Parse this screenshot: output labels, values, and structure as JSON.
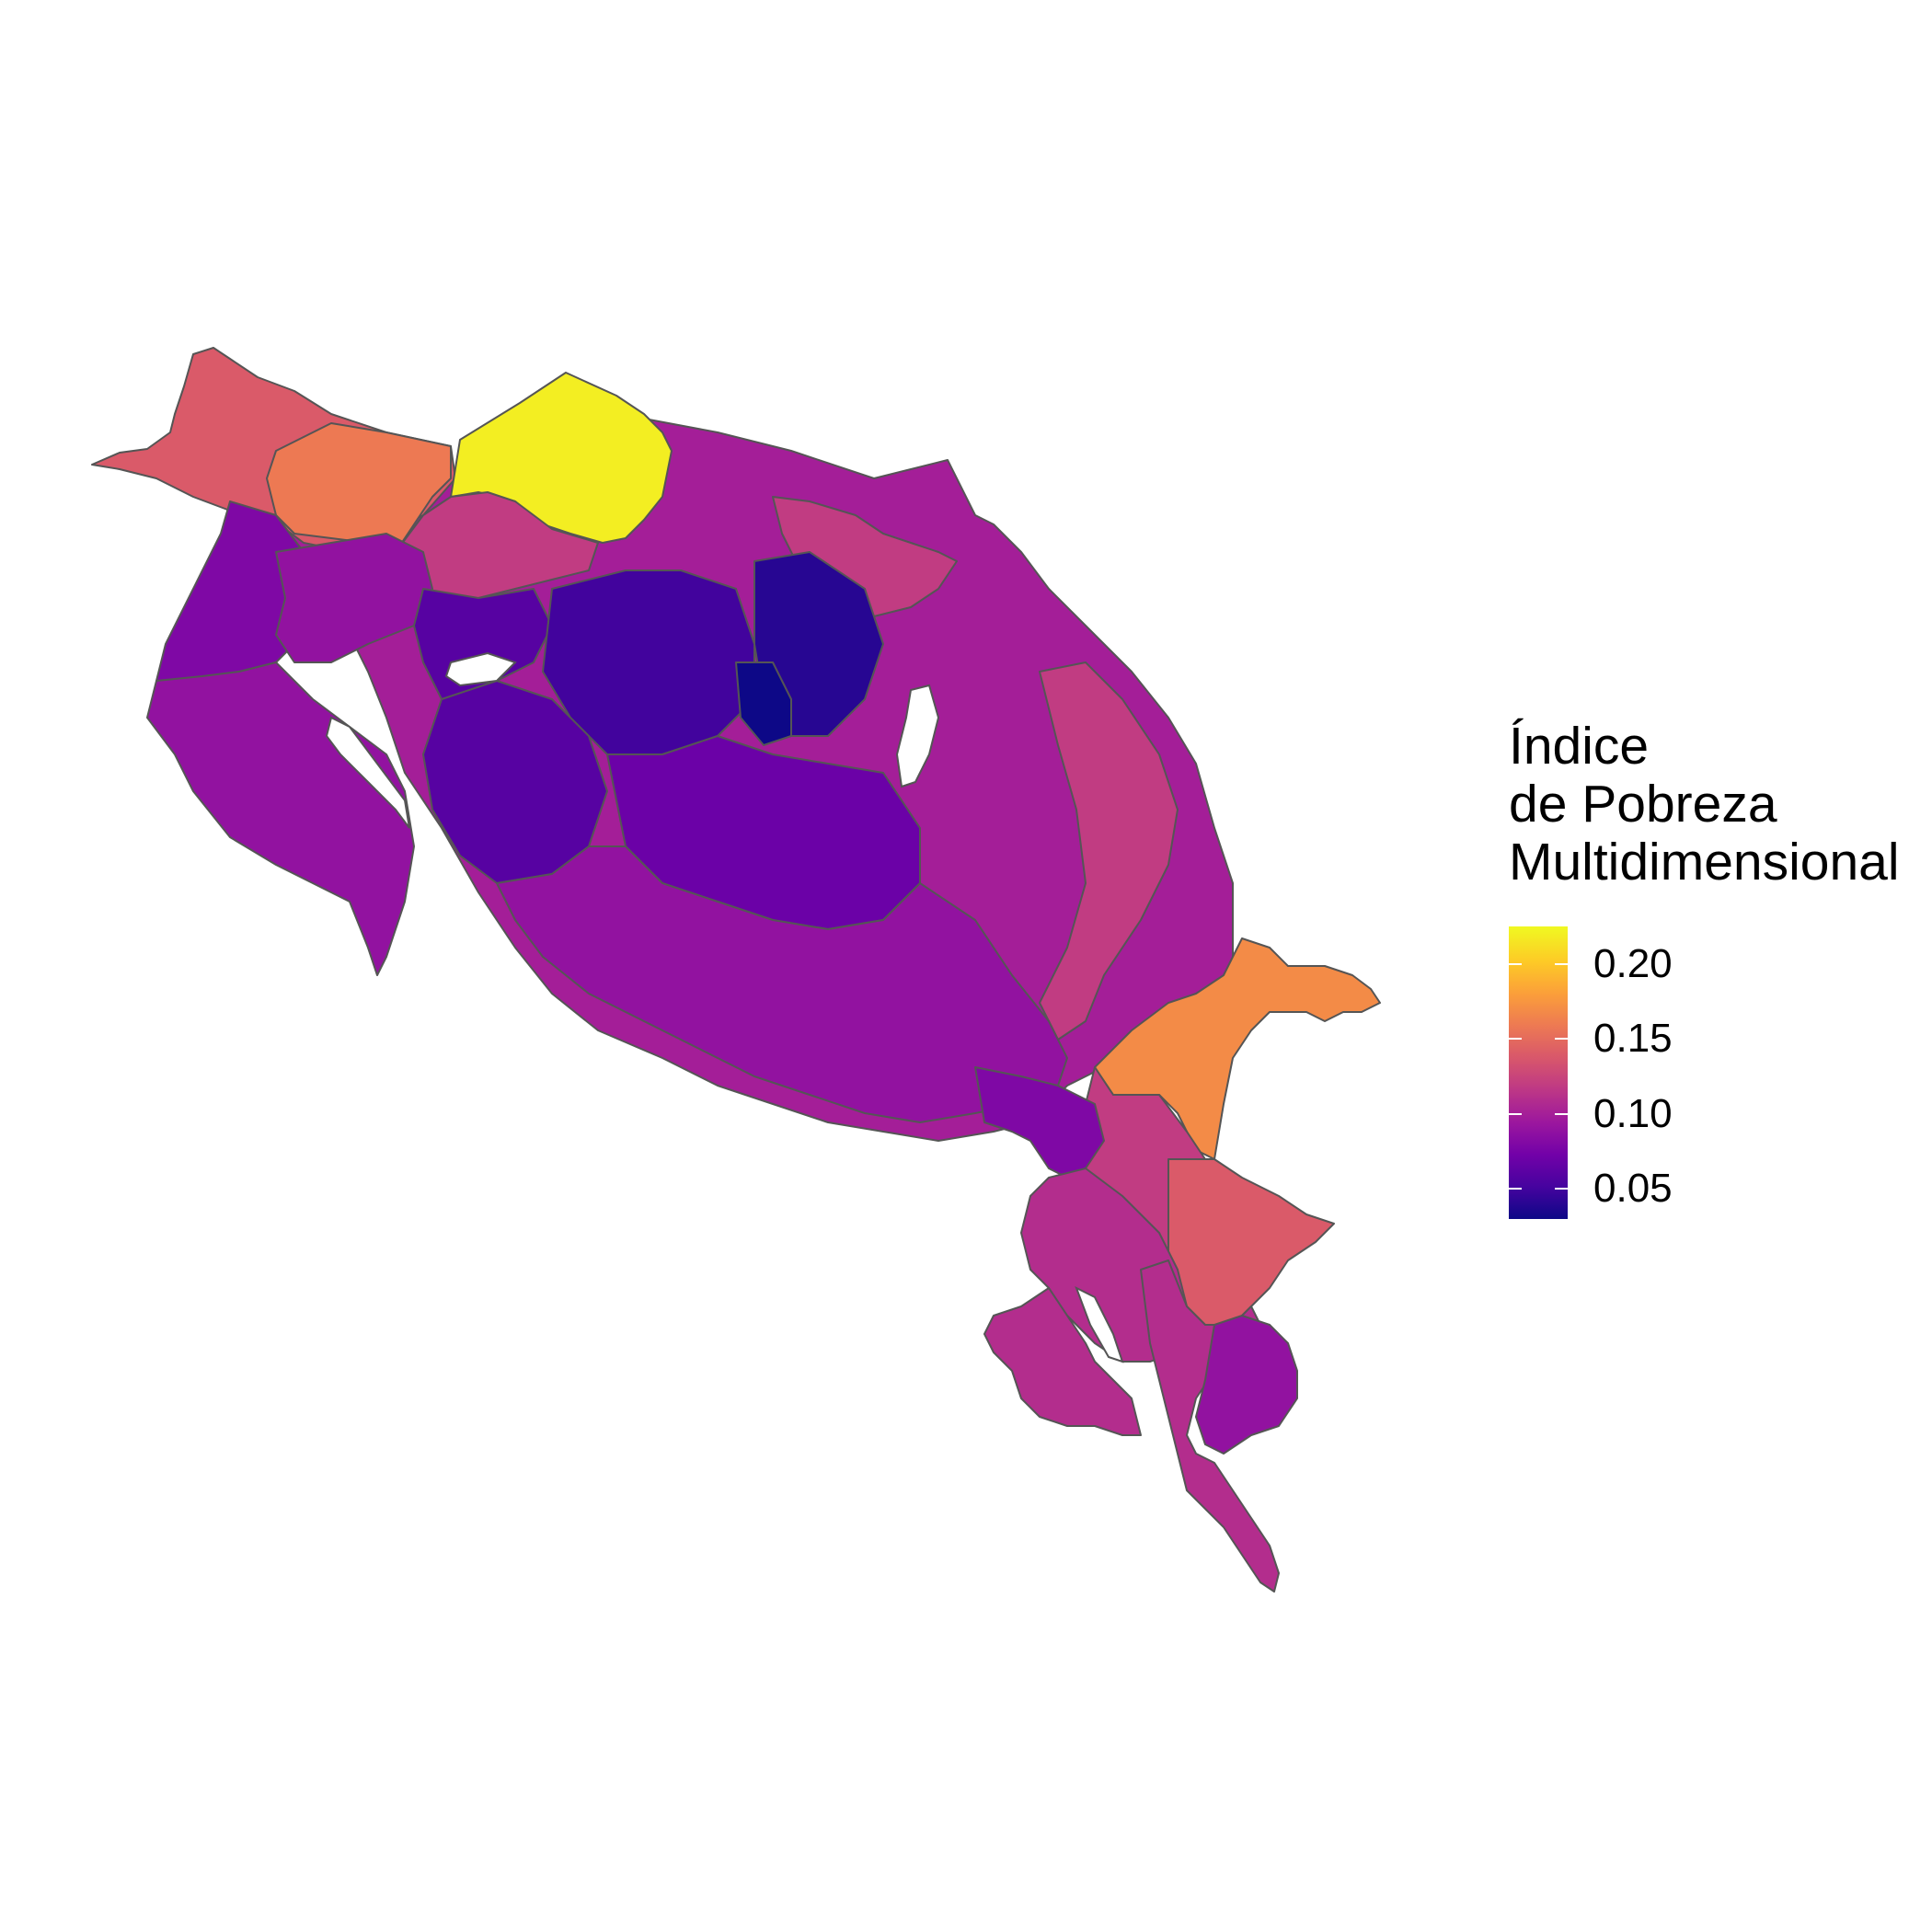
{
  "legend": {
    "title": "Índice\nde Pobreza\nMultidimensional",
    "ticks": [
      "0.20",
      "0.15",
      "0.10",
      "0.05"
    ],
    "tick_values": [
      0.2,
      0.15,
      0.1,
      0.05
    ],
    "range": [
      0.03,
      0.225
    ],
    "colors": [
      "#0d0887",
      "#46039f",
      "#7201a8",
      "#9c179e",
      "#bd3786",
      "#d8576b",
      "#ed7953",
      "#fb9f3a",
      "#fdca26",
      "#f0f921"
    ]
  },
  "map": {
    "regions": [
      {
        "name": "north-west-coast",
        "value": 0.14
      },
      {
        "name": "north-border-west",
        "value": 0.16
      },
      {
        "name": "north-border-yellow",
        "value": 0.22
      },
      {
        "name": "north-central-pink",
        "value": 0.12
      },
      {
        "name": "north-east-pink",
        "value": 0.12
      },
      {
        "name": "nicoya-peninsula",
        "value": 0.09
      },
      {
        "name": "guanacaste-west",
        "value": 0.08
      },
      {
        "name": "guanacaste-central",
        "value": 0.09
      },
      {
        "name": "central-valley-a",
        "value": 0.06
      },
      {
        "name": "central-valley-b",
        "value": 0.05
      },
      {
        "name": "central-valley-c",
        "value": 0.04
      },
      {
        "name": "central-valley-d",
        "value": 0.03
      },
      {
        "name": "central-valley-e",
        "value": 0.06
      },
      {
        "name": "central-valley-f",
        "value": 0.07
      },
      {
        "name": "caribbean-coast",
        "value": 0.1
      },
      {
        "name": "caribbean-inner",
        "value": 0.12
      },
      {
        "name": "east-border-orange",
        "value": 0.17
      },
      {
        "name": "south-east-pink",
        "value": 0.12
      },
      {
        "name": "south-east-coral",
        "value": 0.14
      },
      {
        "name": "pacific-central",
        "value": 0.09
      },
      {
        "name": "pacific-south-a",
        "value": 0.08
      },
      {
        "name": "southern-pink-a",
        "value": 0.11
      },
      {
        "name": "southern-pink-b",
        "value": 0.11
      },
      {
        "name": "southern-purple",
        "value": 0.09
      },
      {
        "name": "osa-peninsula",
        "value": 0.11
      }
    ]
  }
}
